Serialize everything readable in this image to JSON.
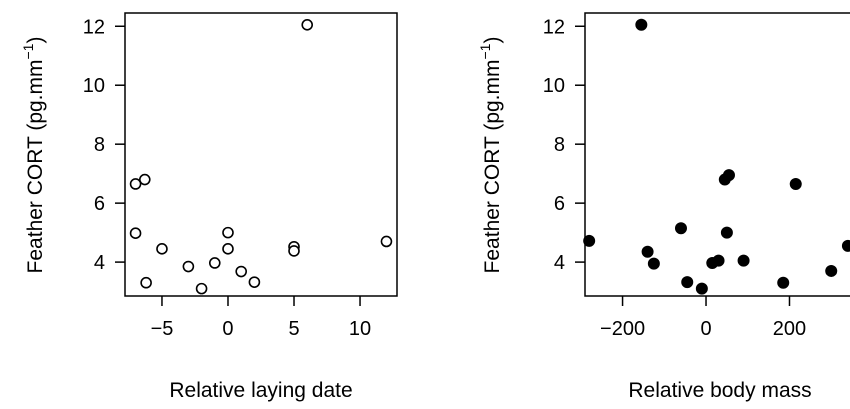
{
  "chart_data": [
    {
      "type": "scatter",
      "marker": "open-circle",
      "xlabel": "Relative laying date",
      "ylabel": "Feather CORT (pg.mm",
      "ylabel_sup": "−1",
      "ylabel_close": ")",
      "xlim": [
        -7.8,
        12.8
      ],
      "ylim": [
        2.85,
        12.45
      ],
      "xticks": [
        -5,
        0,
        5,
        10
      ],
      "xtick_labels": [
        "−5",
        "0",
        "5",
        "10"
      ],
      "yticks": [
        4,
        6,
        8,
        10,
        12
      ],
      "ytick_labels": [
        "4",
        "6",
        "8",
        "10",
        "12"
      ],
      "grid": false,
      "points": [
        {
          "x": -7,
          "y": 6.65
        },
        {
          "x": -6.3,
          "y": 6.8
        },
        {
          "x": -7,
          "y": 4.98
        },
        {
          "x": -6.2,
          "y": 3.3
        },
        {
          "x": -5,
          "y": 4.45
        },
        {
          "x": -3,
          "y": 3.85
        },
        {
          "x": -2,
          "y": 3.1
        },
        {
          "x": -1,
          "y": 3.97
        },
        {
          "x": 0,
          "y": 5.0
        },
        {
          "x": 0,
          "y": 4.45
        },
        {
          "x": 1,
          "y": 3.68
        },
        {
          "x": 2,
          "y": 3.32
        },
        {
          "x": 5,
          "y": 4.52
        },
        {
          "x": 5,
          "y": 4.38
        },
        {
          "x": 6,
          "y": 12.05
        },
        {
          "x": 12,
          "y": 4.7
        }
      ]
    },
    {
      "type": "scatter",
      "marker": "filled-circle",
      "xlabel": "Relative body mass",
      "ylabel": "Feather CORT (pg.mm",
      "ylabel_sup": "−1",
      "ylabel_close": ")",
      "xlim": [
        -290,
        345
      ],
      "ylim": [
        2.85,
        12.45
      ],
      "xticks": [
        -200,
        0,
        200
      ],
      "xtick_labels": [
        "−200",
        "0",
        "200"
      ],
      "yticks": [
        4,
        6,
        8,
        10,
        12
      ],
      "ytick_labels": [
        "4",
        "6",
        "8",
        "10",
        "12"
      ],
      "grid": false,
      "points": [
        {
          "x": -280,
          "y": 4.72
        },
        {
          "x": -155,
          "y": 12.05
        },
        {
          "x": -140,
          "y": 4.35
        },
        {
          "x": -125,
          "y": 3.95
        },
        {
          "x": -60,
          "y": 5.15
        },
        {
          "x": -45,
          "y": 3.32
        },
        {
          "x": -10,
          "y": 3.1
        },
        {
          "x": 15,
          "y": 3.97
        },
        {
          "x": 30,
          "y": 4.05
        },
        {
          "x": 45,
          "y": 6.8
        },
        {
          "x": 55,
          "y": 6.95
        },
        {
          "x": 50,
          "y": 5.0
        },
        {
          "x": 90,
          "y": 4.05
        },
        {
          "x": 185,
          "y": 3.3
        },
        {
          "x": 215,
          "y": 6.65
        },
        {
          "x": 300,
          "y": 3.7
        },
        {
          "x": 340,
          "y": 4.55
        }
      ]
    }
  ]
}
